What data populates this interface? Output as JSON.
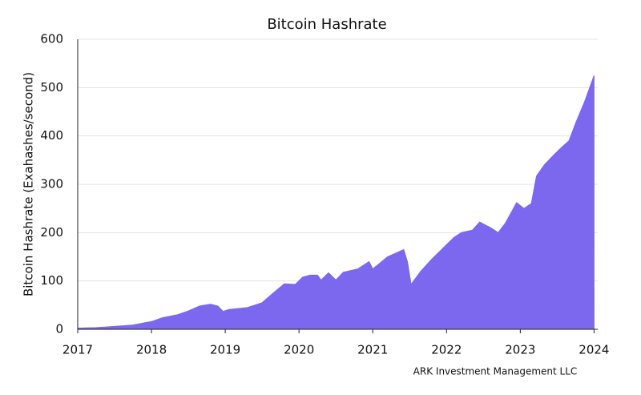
{
  "chart_data": {
    "type": "area",
    "title": "Bitcoin Hashrate",
    "y_label": "Bitcoin Hashrate (Exahashes/second)",
    "source": "ARK Investment Management LLC",
    "color": "#7b68ee",
    "grid": true,
    "x": [
      2017.0,
      2017.25,
      2017.5,
      2017.75,
      2018.0,
      2018.15,
      2018.35,
      2018.5,
      2018.65,
      2018.8,
      2018.9,
      2018.97,
      2019.05,
      2019.3,
      2019.5,
      2019.65,
      2019.8,
      2019.95,
      2020.05,
      2020.15,
      2020.25,
      2020.3,
      2020.4,
      2020.5,
      2020.6,
      2020.8,
      2020.95,
      2021.0,
      2021.1,
      2021.2,
      2021.35,
      2021.42,
      2021.47,
      2021.52,
      2021.65,
      2021.8,
      2022.0,
      2022.1,
      2022.2,
      2022.35,
      2022.45,
      2022.6,
      2022.7,
      2022.8,
      2022.95,
      2023.05,
      2023.15,
      2023.22,
      2023.33,
      2023.45,
      2023.55,
      2023.66,
      2023.76,
      2023.87,
      2024.0
    ],
    "values": [
      2.5,
      3.5,
      6,
      9,
      16,
      24,
      30,
      38,
      48,
      52,
      48,
      37,
      41,
      45,
      55,
      75,
      94,
      93,
      108,
      112,
      112,
      102,
      117,
      102,
      118,
      125,
      140,
      125,
      137,
      150,
      160,
      165,
      140,
      93,
      120,
      145,
      175,
      190,
      200,
      205,
      222,
      210,
      200,
      220,
      262,
      250,
      260,
      317,
      341,
      360,
      375,
      390,
      430,
      470,
      525
    ],
    "xlim": [
      2017,
      2024.05
    ],
    "xticks": [
      2017,
      2018,
      2019,
      2020,
      2021,
      2022,
      2023,
      2024
    ],
    "ylim": [
      0,
      600
    ],
    "yticks": [
      0,
      100,
      200,
      300,
      400,
      500,
      600
    ]
  }
}
